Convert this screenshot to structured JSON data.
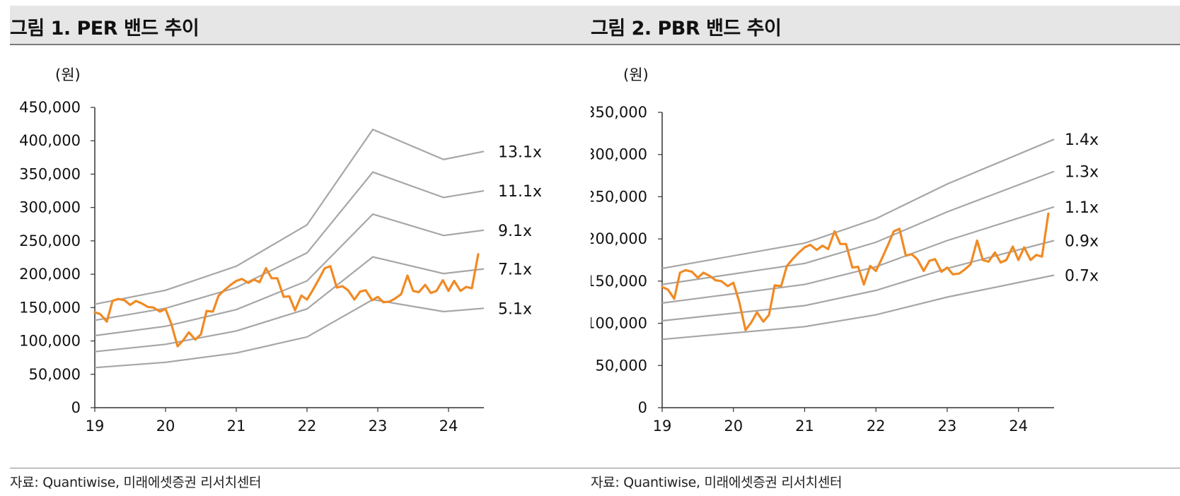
{
  "figures": [
    {
      "title": "그림 1. PER 밴드 추이",
      "source": "자료: Quantiwise, 미래에셋증권 리서치센터"
    },
    {
      "title": "그림 2. PBR 밴드 추이",
      "source": "자료: Quantiwise, 미래에셋증권 리서치센터"
    }
  ],
  "colors": {
    "price_line": "#F08A24",
    "band_line": "#A6A6A6",
    "axis": "#333333"
  },
  "chart_data": [
    {
      "type": "line",
      "unit_label": "(원)",
      "x_ticks": [
        "19",
        "20",
        "21",
        "22",
        "23",
        "24"
      ],
      "xlim": [
        2019.0,
        2024.5
      ],
      "ylim": [
        0,
        450000
      ],
      "y_ticks": [
        "0",
        "50,000",
        "100,000",
        "150,000",
        "200,000",
        "250,000",
        "300,000",
        "350,000",
        "400,000",
        "450,000"
      ],
      "y_tick_values": [
        0,
        50000,
        100000,
        150000,
        200000,
        250000,
        300000,
        350000,
        400000,
        450000
      ],
      "grid": false,
      "legend": "none",
      "bands": [
        {
          "label": "13.1x",
          "points": [
            [
              2019.0,
              155000
            ],
            [
              2020.0,
              176000
            ],
            [
              2021.0,
              212000
            ],
            [
              2022.0,
              274000
            ],
            [
              2022.93,
              417000
            ],
            [
              2023.93,
              372000
            ],
            [
              2024.5,
              384000
            ]
          ]
        },
        {
          "label": "11.1x",
          "points": [
            [
              2019.0,
              131000
            ],
            [
              2020.0,
              149000
            ],
            [
              2021.0,
              180000
            ],
            [
              2022.0,
              232000
            ],
            [
              2022.93,
              353000
            ],
            [
              2023.93,
              315000
            ],
            [
              2024.5,
              325000
            ]
          ]
        },
        {
          "label": "9.1x",
          "points": [
            [
              2019.0,
              108000
            ],
            [
              2020.0,
              122000
            ],
            [
              2021.0,
              147000
            ],
            [
              2022.0,
              190000
            ],
            [
              2022.93,
              290000
            ],
            [
              2023.93,
              258000
            ],
            [
              2024.5,
              266000
            ]
          ]
        },
        {
          "label": "7.1x",
          "points": [
            [
              2019.0,
              84000
            ],
            [
              2020.0,
              95000
            ],
            [
              2021.0,
              115000
            ],
            [
              2022.0,
              148000
            ],
            [
              2022.93,
              226000
            ],
            [
              2023.93,
              201000
            ],
            [
              2024.5,
              208000
            ]
          ]
        },
        {
          "label": "5.1x",
          "points": [
            [
              2019.0,
              60000
            ],
            [
              2020.0,
              68000
            ],
            [
              2021.0,
              82000
            ],
            [
              2022.0,
              106000
            ],
            [
              2022.93,
              162000
            ],
            [
              2023.93,
              144000
            ],
            [
              2024.5,
              149000
            ]
          ]
        }
      ],
      "price": [
        [
          2019.0,
          143000
        ],
        [
          2019.08,
          140000
        ],
        [
          2019.17,
          129000
        ],
        [
          2019.25,
          160000
        ],
        [
          2019.33,
          163000
        ],
        [
          2019.42,
          161000
        ],
        [
          2019.5,
          154000
        ],
        [
          2019.58,
          160000
        ],
        [
          2019.67,
          156000
        ],
        [
          2019.75,
          151000
        ],
        [
          2019.83,
          150000
        ],
        [
          2019.92,
          144000
        ],
        [
          2020.0,
          148000
        ],
        [
          2020.08,
          126000
        ],
        [
          2020.17,
          92000
        ],
        [
          2020.25,
          101000
        ],
        [
          2020.33,
          113000
        ],
        [
          2020.42,
          102000
        ],
        [
          2020.5,
          110000
        ],
        [
          2020.58,
          145000
        ],
        [
          2020.67,
          144000
        ],
        [
          2020.75,
          168000
        ],
        [
          2020.83,
          176000
        ],
        [
          2020.92,
          184000
        ],
        [
          2021.0,
          190000
        ],
        [
          2021.08,
          193000
        ],
        [
          2021.17,
          187000
        ],
        [
          2021.25,
          192000
        ],
        [
          2021.33,
          188000
        ],
        [
          2021.42,
          209000
        ],
        [
          2021.5,
          194000
        ],
        [
          2021.58,
          194000
        ],
        [
          2021.67,
          166000
        ],
        [
          2021.75,
          167000
        ],
        [
          2021.83,
          146000
        ],
        [
          2021.92,
          168000
        ],
        [
          2022.0,
          162000
        ],
        [
          2022.08,
          176000
        ],
        [
          2022.17,
          193000
        ],
        [
          2022.25,
          209000
        ],
        [
          2022.33,
          212000
        ],
        [
          2022.42,
          180000
        ],
        [
          2022.5,
          182000
        ],
        [
          2022.58,
          176000
        ],
        [
          2022.67,
          162000
        ],
        [
          2022.75,
          174000
        ],
        [
          2022.83,
          176000
        ],
        [
          2022.92,
          161000
        ],
        [
          2023.0,
          166000
        ],
        [
          2023.08,
          158000
        ],
        [
          2023.17,
          159000
        ],
        [
          2023.25,
          164000
        ],
        [
          2023.33,
          170000
        ],
        [
          2023.42,
          198000
        ],
        [
          2023.5,
          175000
        ],
        [
          2023.58,
          173000
        ],
        [
          2023.67,
          184000
        ],
        [
          2023.75,
          172000
        ],
        [
          2023.83,
          175000
        ],
        [
          2023.92,
          191000
        ],
        [
          2024.0,
          175000
        ],
        [
          2024.08,
          190000
        ],
        [
          2024.17,
          175000
        ],
        [
          2024.25,
          181000
        ],
        [
          2024.33,
          179000
        ],
        [
          2024.42,
          230000
        ]
      ]
    },
    {
      "type": "line",
      "unit_label": "(원)",
      "x_ticks": [
        "19",
        "20",
        "21",
        "22",
        "23",
        "24"
      ],
      "xlim": [
        2019.0,
        2024.5
      ],
      "ylim": [
        0,
        350000
      ],
      "y_ticks": [
        "0",
        "50,000",
        "100,000",
        "150,000",
        "200,000",
        "250,000",
        "300,000",
        "350,000"
      ],
      "y_tick_values": [
        0,
        50000,
        100000,
        150000,
        200000,
        250000,
        300000,
        350000
      ],
      "grid": false,
      "legend": "none",
      "bands": [
        {
          "label": "1.4x",
          "points": [
            [
              2019.0,
              165000
            ],
            [
              2021.0,
              195000
            ],
            [
              2022.0,
              224000
            ],
            [
              2023.0,
              265000
            ],
            [
              2024.5,
              318000
            ]
          ]
        },
        {
          "label": "1.3x",
          "points": [
            [
              2019.0,
              146000
            ],
            [
              2021.0,
              171000
            ],
            [
              2022.0,
              196000
            ],
            [
              2023.0,
              232000
            ],
            [
              2024.5,
              280000
            ]
          ]
        },
        {
          "label": "1.1x",
          "points": [
            [
              2019.0,
              124000
            ],
            [
              2021.0,
              146000
            ],
            [
              2022.0,
              167000
            ],
            [
              2023.0,
              198000
            ],
            [
              2024.5,
              238000
            ]
          ]
        },
        {
          "label": "0.9x",
          "points": [
            [
              2019.0,
              103000
            ],
            [
              2021.0,
              121000
            ],
            [
              2022.0,
              139000
            ],
            [
              2023.0,
              165000
            ],
            [
              2024.5,
              198000
            ]
          ]
        },
        {
          "label": "0.7x",
          "points": [
            [
              2019.0,
              81000
            ],
            [
              2021.0,
              96000
            ],
            [
              2022.0,
              110000
            ],
            [
              2023.0,
              131000
            ],
            [
              2024.5,
              157000
            ]
          ]
        }
      ],
      "price": [
        [
          2019.0,
          143000
        ],
        [
          2019.08,
          140000
        ],
        [
          2019.17,
          129000
        ],
        [
          2019.25,
          160000
        ],
        [
          2019.33,
          163000
        ],
        [
          2019.42,
          161000
        ],
        [
          2019.5,
          154000
        ],
        [
          2019.58,
          160000
        ],
        [
          2019.67,
          156000
        ],
        [
          2019.75,
          151000
        ],
        [
          2019.83,
          150000
        ],
        [
          2019.92,
          144000
        ],
        [
          2020.0,
          148000
        ],
        [
          2020.08,
          126000
        ],
        [
          2020.17,
          92000
        ],
        [
          2020.25,
          101000
        ],
        [
          2020.33,
          113000
        ],
        [
          2020.42,
          102000
        ],
        [
          2020.5,
          110000
        ],
        [
          2020.58,
          145000
        ],
        [
          2020.67,
          144000
        ],
        [
          2020.75,
          168000
        ],
        [
          2020.83,
          176000
        ],
        [
          2020.92,
          184000
        ],
        [
          2021.0,
          190000
        ],
        [
          2021.08,
          193000
        ],
        [
          2021.17,
          187000
        ],
        [
          2021.25,
          192000
        ],
        [
          2021.33,
          188000
        ],
        [
          2021.42,
          209000
        ],
        [
          2021.5,
          194000
        ],
        [
          2021.58,
          194000
        ],
        [
          2021.67,
          166000
        ],
        [
          2021.75,
          167000
        ],
        [
          2021.83,
          146000
        ],
        [
          2021.92,
          168000
        ],
        [
          2022.0,
          162000
        ],
        [
          2022.08,
          176000
        ],
        [
          2022.17,
          193000
        ],
        [
          2022.25,
          209000
        ],
        [
          2022.33,
          212000
        ],
        [
          2022.42,
          180000
        ],
        [
          2022.5,
          182000
        ],
        [
          2022.58,
          176000
        ],
        [
          2022.67,
          162000
        ],
        [
          2022.75,
          174000
        ],
        [
          2022.83,
          176000
        ],
        [
          2022.92,
          161000
        ],
        [
          2023.0,
          166000
        ],
        [
          2023.08,
          158000
        ],
        [
          2023.17,
          159000
        ],
        [
          2023.25,
          164000
        ],
        [
          2023.33,
          170000
        ],
        [
          2023.42,
          198000
        ],
        [
          2023.5,
          175000
        ],
        [
          2023.58,
          173000
        ],
        [
          2023.67,
          184000
        ],
        [
          2023.75,
          172000
        ],
        [
          2023.83,
          175000
        ],
        [
          2023.92,
          191000
        ],
        [
          2024.0,
          175000
        ],
        [
          2024.08,
          190000
        ],
        [
          2024.17,
          175000
        ],
        [
          2024.25,
          181000
        ],
        [
          2024.33,
          179000
        ],
        [
          2024.42,
          230000
        ]
      ]
    }
  ]
}
